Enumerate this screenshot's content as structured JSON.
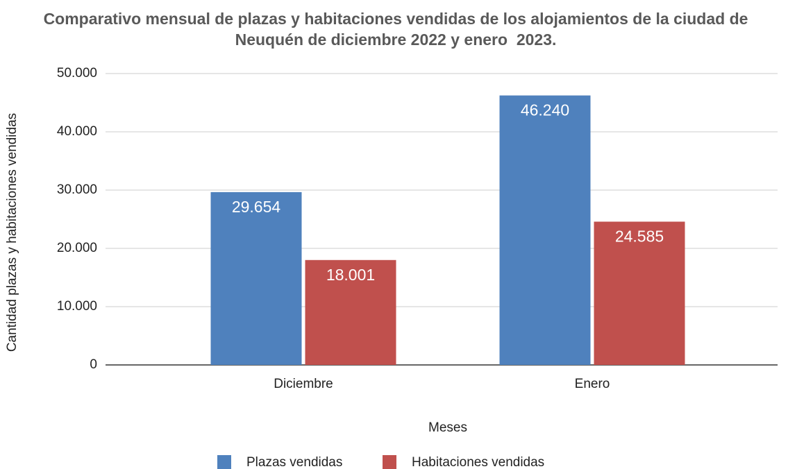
{
  "chart_data": {
    "type": "bar",
    "title": "Comparativo mensual de plazas y habitaciones vendidas de los alojamientos de la ciudad de Neuquén de diciembre 2022 y enero  2023.",
    "x_label": "Meses",
    "y_label": "Cantidad plazas y habitaciones vendidas",
    "categories": [
      "Diciembre",
      "Enero"
    ],
    "series": [
      {
        "name": "Plazas vendidas",
        "color": "#4f81bd",
        "values": [
          29654,
          46240
        ],
        "value_labels": [
          "29.654",
          "46.240"
        ]
      },
      {
        "name": "Habitaciones vendidas",
        "color": "#c0504d",
        "values": [
          18001,
          24585
        ],
        "value_labels": [
          "18.001",
          "24.585"
        ]
      }
    ],
    "ylim": [
      0,
      50000
    ],
    "yticks": [
      0,
      {
        "value": 10000,
        "label": "10.000"
      },
      {
        "value": 20000,
        "label": "20.000"
      },
      {
        "value": 30000,
        "label": "30.000"
      },
      {
        "value": 40000,
        "label": "40.000"
      },
      {
        "value": 50000,
        "label": "50.000"
      }
    ],
    "grid": true,
    "legend": "bottom"
  }
}
